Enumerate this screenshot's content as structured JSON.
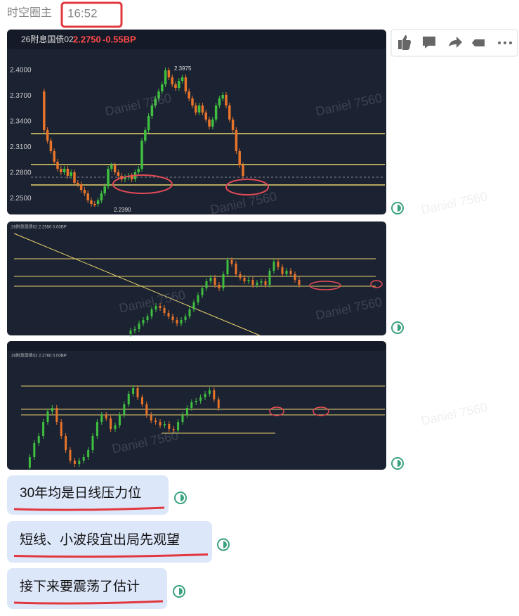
{
  "header": {
    "sender": "时空圈主",
    "time": "16:52"
  },
  "images": [
    {
      "title": "26附息国债02",
      "price": "2.2750",
      "change": "-0.55BP",
      "y_labels": [
        "2.4000",
        "2.3700",
        "2.3400",
        "2.3100",
        "2.2800",
        "2.2500"
      ],
      "high": "2.3975",
      "low": "2.2390"
    },
    {
      "title": "26附息国债02 2.2550 0.00BP"
    },
    {
      "title": "26附息国债02 2.2760 0.00BP"
    }
  ],
  "messages": [
    "30年均是日线压力位",
    "短线、小波段宜出局先观望",
    "接下来要震荡了估计"
  ],
  "watermark": "Daniel 7560"
}
